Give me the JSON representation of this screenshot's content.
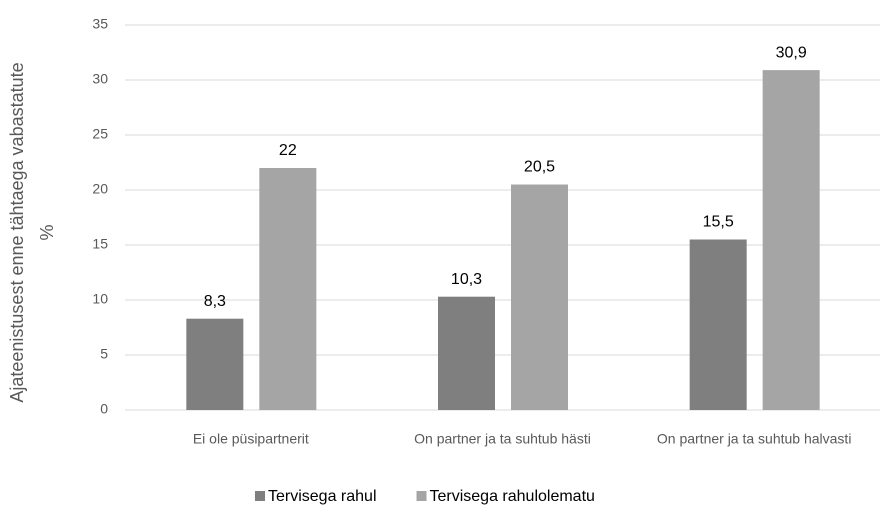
{
  "chart_data": {
    "type": "bar",
    "y_label": [
      "Ajateenistusest enne tähtaega vabastatute",
      "%"
    ],
    "categories": [
      "Ei ole püsipartnerit",
      "On partner ja ta suhtub hästi",
      "On partner ja ta suhtub halvasti"
    ],
    "series": [
      {
        "name": "Tervisega rahul",
        "color": "#7f7f7f",
        "values": [
          8.3,
          10.3,
          15.5
        ],
        "value_labels": [
          "8,3",
          "10,3",
          "15,5"
        ]
      },
      {
        "name": "Tervisega rahulolematu",
        "color": "#a5a5a5",
        "values": [
          22,
          20.5,
          30.9
        ],
        "value_labels": [
          "22",
          "20,5",
          "30,9"
        ]
      }
    ],
    "ylim": [
      0,
      35
    ],
    "yticks": [
      0,
      5,
      10,
      15,
      20,
      25,
      30,
      35
    ],
    "grid": true,
    "legend": "bottom"
  }
}
